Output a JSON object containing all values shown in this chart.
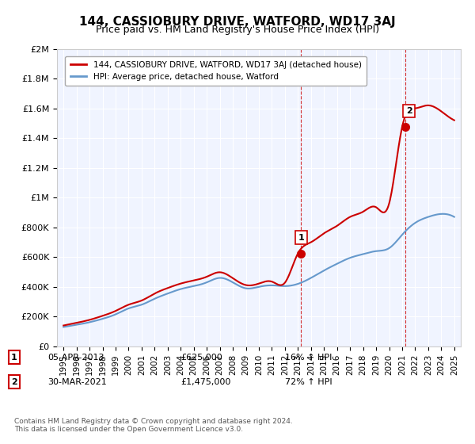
{
  "title": "144, CASSIOBURY DRIVE, WATFORD, WD17 3AJ",
  "subtitle": "Price paid vs. HM Land Registry's House Price Index (HPI)",
  "title_fontsize": 11,
  "subtitle_fontsize": 9,
  "background_color": "#ffffff",
  "plot_bg_color": "#f0f4ff",
  "grid_color": "#ffffff",
  "ylim": [
    0,
    2000000
  ],
  "yticks": [
    0,
    200000,
    400000,
    600000,
    800000,
    1000000,
    1200000,
    1400000,
    1600000,
    1800000,
    2000000
  ],
  "ytick_labels": [
    "£0",
    "£200K",
    "£400K",
    "£600K",
    "£800K",
    "£1M",
    "£1.2M",
    "£1.4M",
    "£1.6M",
    "£1.8M",
    "£2M"
  ],
  "xlim_start": 1994.5,
  "xlim_end": 2025.5,
  "sale1_year": 2013.25,
  "sale1_price": 625000,
  "sale1_label": "1",
  "sale1_date": "05-APR-2013",
  "sale1_price_str": "£625,000",
  "sale1_hpi": "16% ↑ HPI",
  "sale2_year": 2021.23,
  "sale2_price": 1475000,
  "sale2_label": "2",
  "sale2_date": "30-MAR-2021",
  "sale2_price_str": "£1,475,000",
  "sale2_hpi": "72% ↑ HPI",
  "red_color": "#cc0000",
  "blue_color": "#6699cc",
  "dashed_color": "#cc0000",
  "legend_label_red": "144, CASSIOBURY DRIVE, WATFORD, WD17 3AJ (detached house)",
  "legend_label_blue": "HPI: Average price, detached house, Watford",
  "footer_text": "Contains HM Land Registry data © Crown copyright and database right 2024.\nThis data is licensed under the Open Government Licence v3.0.",
  "xtick_years": [
    1995,
    1996,
    1997,
    1998,
    1999,
    2000,
    2001,
    2002,
    2003,
    2004,
    2005,
    2006,
    2007,
    2008,
    2009,
    2010,
    2011,
    2012,
    2013,
    2014,
    2015,
    2016,
    2017,
    2018,
    2019,
    2020,
    2021,
    2022,
    2023,
    2024,
    2025
  ]
}
